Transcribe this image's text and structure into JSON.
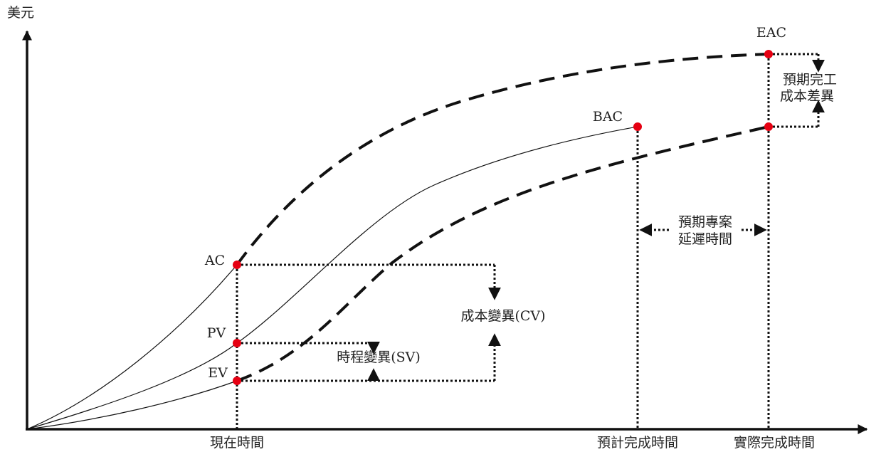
{
  "axes": {
    "y_label": "美元",
    "x_labels": {
      "now": "現在時間",
      "planned_finish": "預計完成時間",
      "actual_finish": "實際完成時間"
    }
  },
  "points": {
    "eac": "EAC",
    "bac": "BAC",
    "ac": "AC",
    "pv": "PV",
    "ev": "EV"
  },
  "annotations": {
    "vac_line1": "預期完工",
    "vac_line2": "成本差異",
    "delay_line1": "預期專案",
    "delay_line2": "延遲時間",
    "cv": "成本變異(CV)",
    "sv": "時程變異(SV)"
  },
  "colors": {
    "marker": "#e60012",
    "line": "#111111"
  }
}
